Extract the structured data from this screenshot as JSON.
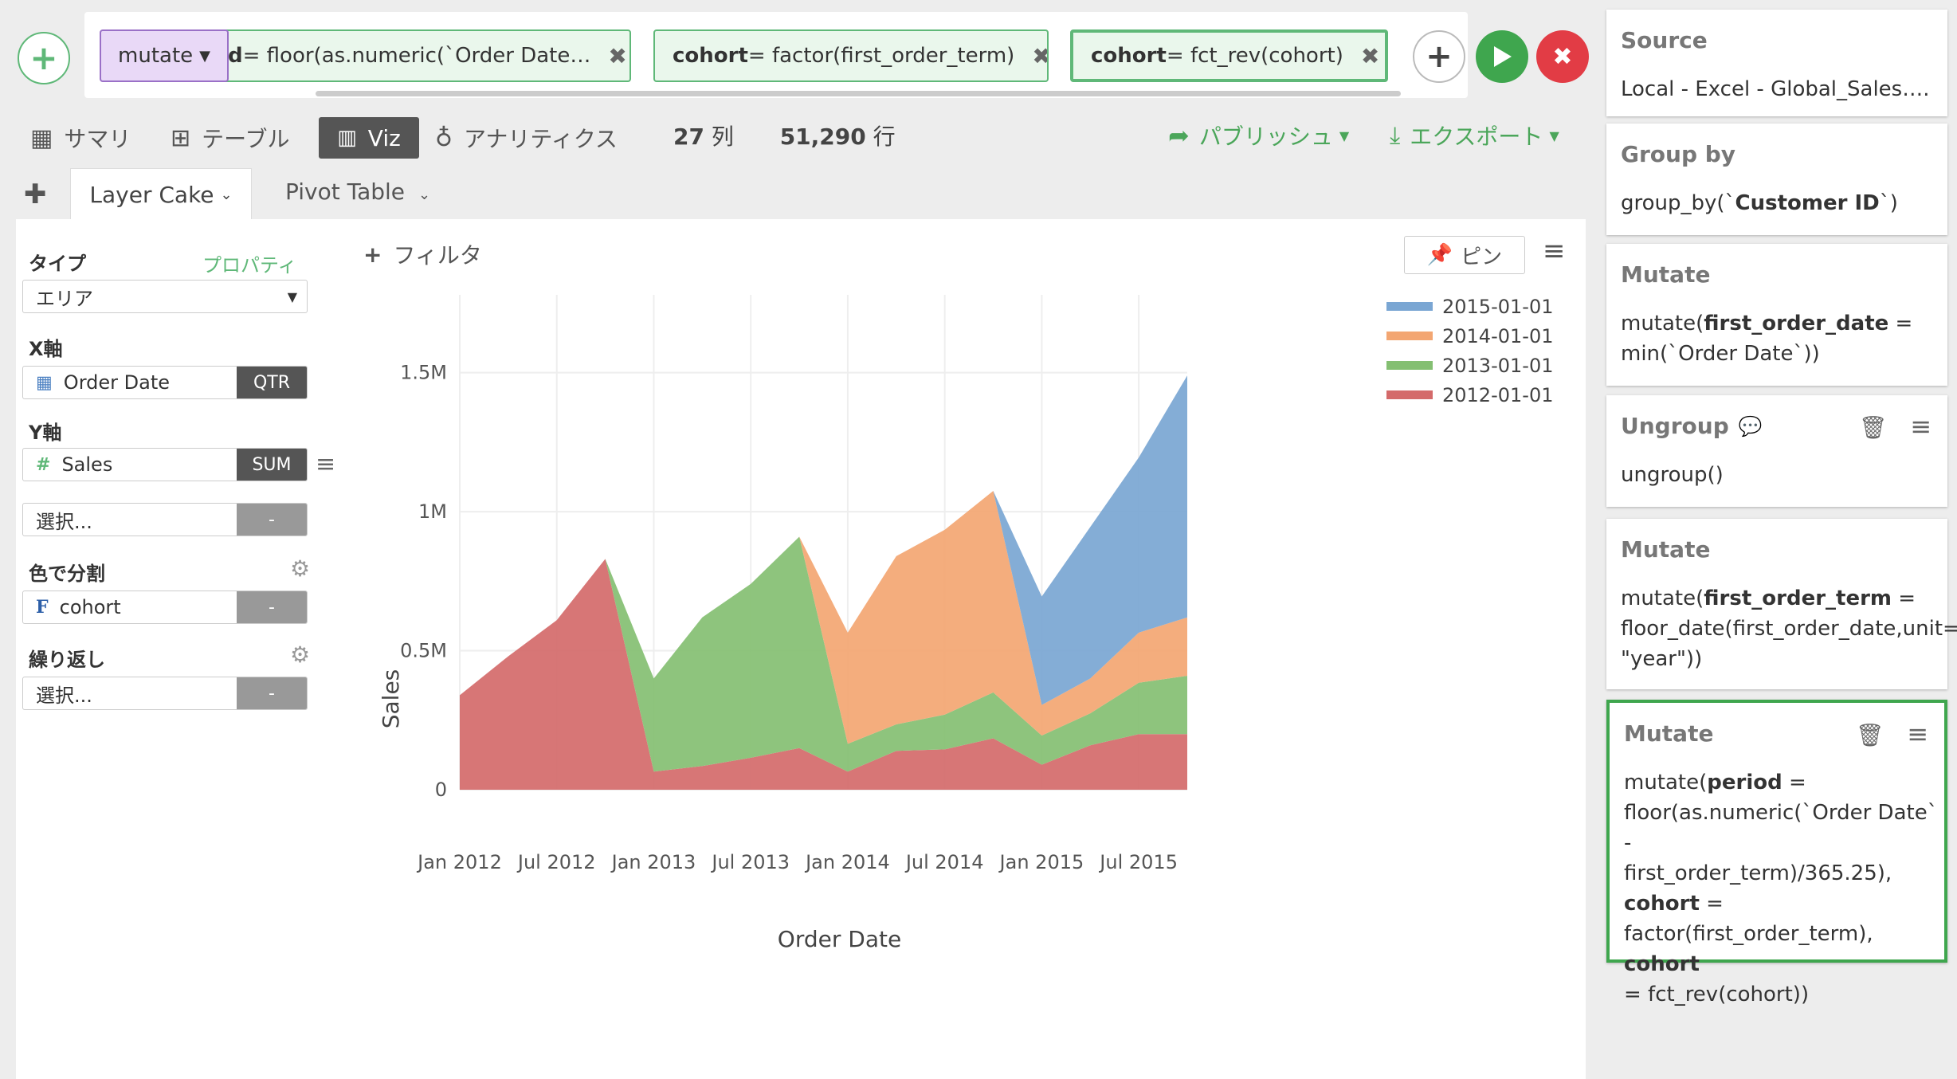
{
  "command_bar": {
    "mutate_label": "mutate",
    "chips": [
      {
        "prefix": "d",
        "rest": " = floor(as.numeric(`Order Date…"
      },
      {
        "bold": "cohort",
        "rest": " = factor(first_order_term)"
      },
      {
        "bold": "cohort",
        "rest": " = fct_rev(cohort)"
      }
    ]
  },
  "view_tabs": {
    "summary": "サマリ",
    "table": "テーブル",
    "viz": "Viz",
    "analytics": "アナリティクス"
  },
  "counts": {
    "cols": "27",
    "cols_unit": "列",
    "rows": "51,290",
    "rows_unit": "行"
  },
  "actions": {
    "publish": "パブリッシュ",
    "export": "エクスポート"
  },
  "sub_tabs": {
    "layer_cake": "Layer Cake",
    "pivot_table": "Pivot Table"
  },
  "config": {
    "type_label": "タイプ",
    "properties_link": "プロパティ",
    "type_value": "エリア",
    "x_label": "X軸",
    "x_field": "Order Date",
    "x_agg": "QTR",
    "y_label": "Y軸",
    "y_field": "Sales",
    "y_agg": "SUM",
    "select_placeholder": "選択...",
    "dash": "-",
    "color_label": "色で分割",
    "color_field": "cohort",
    "repeat_label": "繰り返し"
  },
  "filter_label": "フィルタ",
  "pin_label": "ピン",
  "chart_data": {
    "type": "area",
    "stacked": true,
    "xlabel": "Order Date",
    "ylabel": "Sales",
    "ylim": [
      0,
      1780000
    ],
    "y_ticks": [
      0,
      500000,
      1000000,
      1500000
    ],
    "y_tick_labels": [
      "0",
      "0.5M",
      "1M",
      "1.5M"
    ],
    "x_tick_labels": [
      "Jan 2012",
      "Jul 2012",
      "Jan 2013",
      "Jul 2013",
      "Jan 2014",
      "Jul 2014",
      "Jan 2015",
      "Jul 2015"
    ],
    "x": [
      "2012-01-01",
      "2012-04-01",
      "2012-07-01",
      "2012-10-01",
      "2013-01-01",
      "2013-04-01",
      "2013-07-01",
      "2013-10-01",
      "2014-01-01",
      "2014-04-01",
      "2014-07-01",
      "2014-10-01",
      "2015-01-01",
      "2015-04-01",
      "2015-07-01",
      "2015-10-01"
    ],
    "legend_position": "top-right",
    "series": [
      {
        "name": "2012-01-01",
        "color": "#d46a6a",
        "values": [
          340000,
          480000,
          610000,
          830000,
          65000,
          85000,
          115000,
          150000,
          65000,
          140000,
          145000,
          185000,
          90000,
          160000,
          200000,
          200000
        ]
      },
      {
        "name": "2013-01-01",
        "color": "#84bf72",
        "values": [
          0,
          0,
          0,
          0,
          335000,
          535000,
          625000,
          760000,
          100000,
          95000,
          125000,
          165000,
          105000,
          115000,
          185000,
          210000
        ]
      },
      {
        "name": "2014-01-01",
        "color": "#f3a672",
        "values": [
          0,
          0,
          0,
          0,
          0,
          0,
          0,
          0,
          400000,
          605000,
          665000,
          725000,
          110000,
          125000,
          180000,
          210000
        ]
      },
      {
        "name": "2015-01-01",
        "color": "#7aa6d3",
        "values": [
          0,
          0,
          0,
          0,
          0,
          0,
          0,
          0,
          0,
          0,
          0,
          0,
          390000,
          545000,
          630000,
          870000
        ]
      }
    ]
  },
  "pipeline": [
    {
      "title": "Source",
      "body": "Local - Excel - Global_Sales…."
    },
    {
      "title": "Group by",
      "body_html": "group_by(`<b>Customer ID</b>`)"
    },
    {
      "title": "Mutate",
      "body_html": "mutate(<b>first_order_date</b> =<br>min(`Order Date`))"
    },
    {
      "title": "Ungroup",
      "body": "ungroup()"
    },
    {
      "title": "Mutate",
      "body_html": "mutate(<b>first_order_term</b> =<br>floor_date(first_order_date,unit=<br>\"year\"))"
    },
    {
      "title": "Mutate",
      "body_html": "mutate(<b>period</b> =<br>floor(as.numeric(`Order Date` -<br>first_order_term)/365.25),<br><b>cohort</b> =<br>factor(first_order_term), <b>cohort</b><br>= fct_rev(cohort))"
    }
  ]
}
